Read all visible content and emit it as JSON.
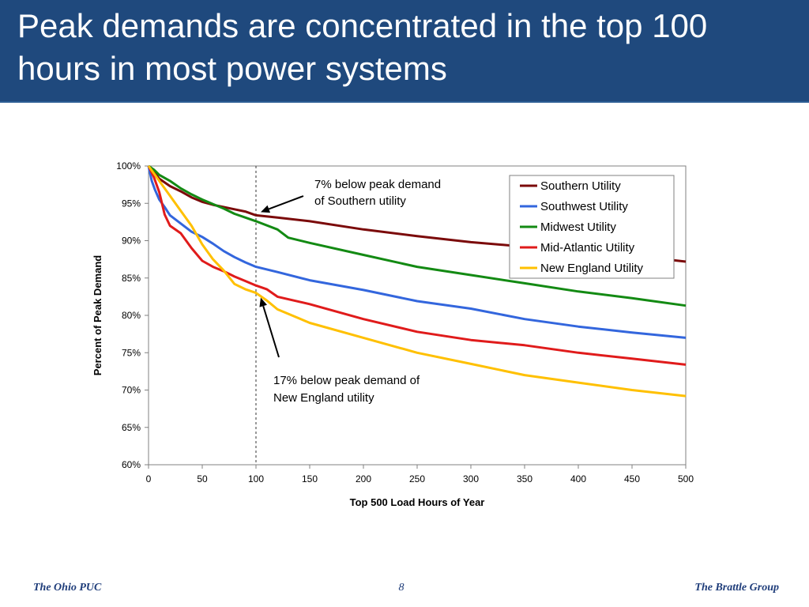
{
  "slide": {
    "title": "Peak demands are concentrated in the top 100 hours in most power systems",
    "footer_left": "The Ohio PUC",
    "page_number": "8",
    "footer_right": "The Brattle Group"
  },
  "colors": {
    "title_bar": "#1f497d",
    "footer_text": "#1f3d7a"
  },
  "chart_data": {
    "type": "line",
    "xlabel": "Top 500 Load Hours of Year",
    "ylabel": "Percent of Peak Demand",
    "xlim": [
      0,
      500
    ],
    "ylim": [
      60,
      100
    ],
    "x_ticks": [
      "0",
      "50",
      "100",
      "150",
      "200",
      "250",
      "300",
      "350",
      "400",
      "450",
      "500"
    ],
    "y_ticks": [
      "60%",
      "65%",
      "70%",
      "75%",
      "80%",
      "85%",
      "90%",
      "95%",
      "100%"
    ],
    "grid": false,
    "legend_position": "top-right",
    "reference_line_x": 100,
    "series": [
      {
        "name": "Southern Utility",
        "color": "#7b0a0a",
        "x": [
          0,
          5,
          10,
          20,
          30,
          40,
          50,
          60,
          70,
          80,
          90,
          100,
          120,
          150,
          200,
          250,
          300,
          350,
          400,
          450,
          500
        ],
        "y": [
          100,
          99.2,
          98.3,
          97.3,
          96.6,
          95.8,
          95.2,
          94.8,
          94.5,
          94.2,
          93.9,
          93.4,
          93.1,
          92.6,
          91.5,
          90.6,
          89.8,
          89.2,
          88.6,
          88.0,
          87.2
        ]
      },
      {
        "name": "Southwest Utility",
        "color": "#3366dd",
        "x": [
          0,
          3,
          6,
          10,
          15,
          20,
          30,
          40,
          50,
          60,
          70,
          80,
          90,
          100,
          120,
          150,
          200,
          250,
          300,
          350,
          400,
          450,
          500
        ],
        "y": [
          100,
          98.0,
          96.8,
          95.5,
          94.5,
          93.4,
          92.3,
          91.2,
          90.5,
          89.6,
          88.6,
          87.8,
          87.1,
          86.5,
          85.8,
          84.7,
          83.4,
          81.9,
          80.9,
          79.5,
          78.5,
          77.7,
          77.0
        ]
      },
      {
        "name": "Midwest Utility",
        "color": "#138a13",
        "x": [
          0,
          5,
          10,
          20,
          30,
          40,
          50,
          60,
          70,
          80,
          90,
          100,
          120,
          130,
          150,
          200,
          250,
          300,
          350,
          400,
          450,
          500
        ],
        "y": [
          100,
          99.5,
          98.8,
          98.0,
          97.0,
          96.2,
          95.5,
          94.9,
          94.3,
          93.6,
          93.1,
          92.6,
          91.5,
          90.4,
          89.7,
          88.1,
          86.5,
          85.4,
          84.3,
          83.2,
          82.3,
          81.3
        ]
      },
      {
        "name": "Mid-Atlantic Utility",
        "color": "#e01b1b",
        "x": [
          0,
          5,
          10,
          15,
          20,
          30,
          40,
          50,
          60,
          70,
          80,
          90,
          100,
          110,
          120,
          150,
          200,
          250,
          300,
          350,
          400,
          450,
          500
        ],
        "y": [
          100,
          98.5,
          96.5,
          93.5,
          92.0,
          91.0,
          89.0,
          87.3,
          86.5,
          85.9,
          85.2,
          84.6,
          84.0,
          83.5,
          82.5,
          81.5,
          79.5,
          77.8,
          76.7,
          76.0,
          75.0,
          74.2,
          73.4
        ]
      },
      {
        "name": "New England Utility",
        "color": "#ffc000",
        "x": [
          0,
          5,
          10,
          20,
          30,
          40,
          50,
          60,
          70,
          80,
          90,
          100,
          110,
          120,
          150,
          200,
          250,
          300,
          350,
          400,
          450,
          500
        ],
        "y": [
          100,
          99.0,
          98.0,
          96.0,
          94.0,
          92.0,
          89.5,
          87.5,
          86.0,
          84.2,
          83.5,
          83.0,
          82.0,
          80.8,
          79.0,
          77.0,
          75.0,
          73.5,
          72.0,
          71.0,
          70.0,
          69.2
        ]
      }
    ],
    "annotations": [
      {
        "lines": [
          "7% below peak demand",
          "of Southern utility"
        ],
        "arrow_to": [
          100,
          93.4
        ]
      },
      {
        "lines": [
          "17% below peak demand of",
          "New England utility"
        ],
        "arrow_to": [
          100,
          83.0
        ]
      }
    ]
  }
}
